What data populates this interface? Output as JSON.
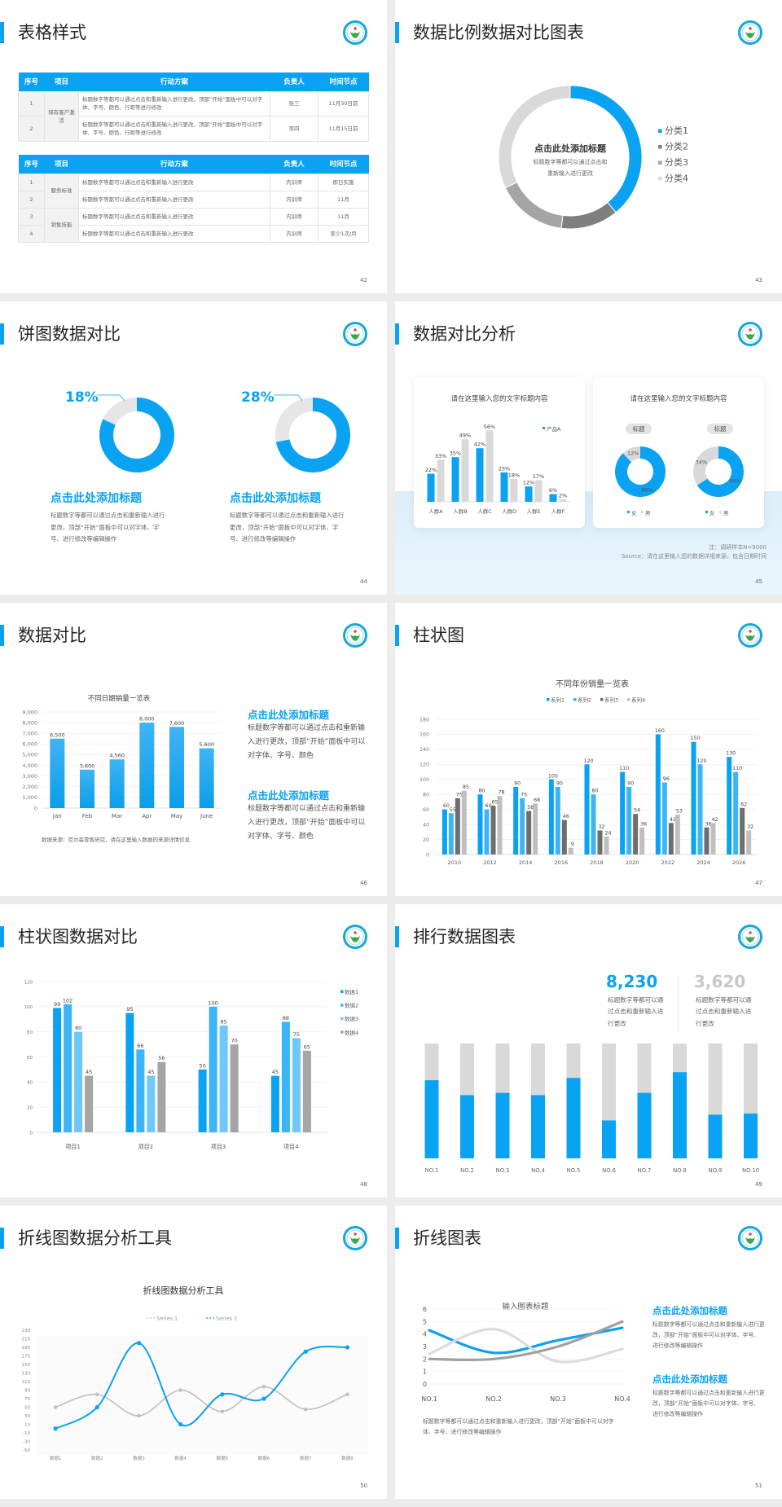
{
  "colors": {
    "accent": "#0aa2f2",
    "accent2": "#3bb5f6",
    "accent3": "#6ec8fa",
    "dark_gray": "#7f7f7f",
    "mid_gray": "#a5a5a5",
    "light_gray": "#d9d9d9",
    "logo_ring": "#19a6d9"
  },
  "slides": {
    "s42": {
      "title": "表格样式",
      "page": "42",
      "table1": {
        "headers": [
          "序号",
          "项目",
          "行动方案",
          "负责人",
          "时间节点"
        ],
        "groups": [
          {
            "name": "保有客户激活",
            "rows": [
              {
                "no": "1",
                "plan": "标题数字等都可以通过点击和重新输入进行更改，顶部“开始”面板中可以对字体、字号、颜色、行距等进行修改",
                "owner": "张三",
                "time": "11月30日前"
              },
              {
                "no": "2",
                "plan": "标题数字等都可以通过点击和重新输入进行更改，顶部“开始”面板中可以对字体、字号、颜色、行距等进行修改",
                "owner": "李四",
                "time": "11月15日前"
              }
            ]
          }
        ]
      },
      "table2": {
        "headers": [
          "序号",
          "项目",
          "行动方案",
          "负责人",
          "时间节点"
        ],
        "groups": [
          {
            "name": "服务标准",
            "rows": [
              {
                "no": "1",
                "plan": "标题数字等都可以通过点击和重新输入进行更改",
                "owner": "内训师",
                "time": "即日实施"
              },
              {
                "no": "2",
                "plan": "标题数字等都可以通过点击和重新输入进行更改",
                "owner": "内训师",
                "time": "11月"
              }
            ]
          },
          {
            "name": "销售技能",
            "rows": [
              {
                "no": "3",
                "plan": "标题数字等都可以通过点击和重新输入进行更改",
                "owner": "内训师",
                "time": "11月"
              },
              {
                "no": "4",
                "plan": "标题数字等都可以通过点击和重新输入进行更改",
                "owner": "内训师",
                "time": "至少1次/月"
              }
            ]
          }
        ]
      }
    },
    "s43": {
      "title": "数据比例数据对比图表",
      "page": "43",
      "center_title": "点击此处添加标题",
      "center_line1": "标题数字等都可以通过点击和",
      "center_line2": "重新输入进行更改"
    },
    "s44": {
      "title": "饼图数据对比",
      "page": "44",
      "items": [
        {
          "percent": "18%",
          "heading": "点击此处添加标题",
          "body": "标题数字等都可以通过点击和重新输入进行更改，顶部“开始”面板中可以对字体、字号、进行修改等编辑操作"
        },
        {
          "percent": "28%",
          "heading": "点击此处添加标题",
          "body": "标题数字等都可以通过点击和重新输入进行更改，顶部“开始”面板中可以对字体、字号、进行修改等编辑操作"
        }
      ]
    },
    "s45": {
      "title": "数据对比分析",
      "page": "45",
      "card1_title": "请在这里输入您的文字标题内容",
      "card2_title": "请在这里输入您的文字标题内容",
      "pill1": "标题",
      "pill2": "标题",
      "note": "注：调研样本N=9000",
      "source": "Source：请在这里输入您的数据详细来源，包含日期时间"
    },
    "s46": {
      "title": "数据对比",
      "page": "46",
      "source": "数据来源：尼尔森零售研究，请在这里输入数据的来源详情信息",
      "blocks": [
        {
          "heading": "点击此处添加标题",
          "body": "标题数字等都可以通过点击和重新输入进行更改，顶部“开始”面板中可以对字体、字号、颜色"
        },
        {
          "heading": "点击此处添加标题",
          "body": "标题数字等都可以通过点击和重新输入进行更改，顶部“开始”面板中可以对字体、字号、颜色"
        }
      ]
    },
    "s47": {
      "title": "柱状图",
      "page": "47"
    },
    "s48": {
      "title": "柱状图数据对比",
      "page": "48"
    },
    "s49": {
      "title": "排行数据图表",
      "page": "49",
      "stats": [
        {
          "value": "8,230",
          "body": "标题数字等都可以通过点击和重新输入进行更改"
        },
        {
          "value": "3,620",
          "body": "标题数字等都可以通过点击和重新输入进行更改"
        }
      ]
    },
    "s50": {
      "title": "折线图数据分析工具",
      "page": "50"
    },
    "s51": {
      "title": "折线图表",
      "page": "51",
      "caption": "标题数字等都可以通过点击和重新输入进行更改，顶部“开始”面板中可以对字体、字号、进行修改等编辑操作",
      "blocks": [
        {
          "heading": "点击此处添加标题",
          "body": "标题数字等都可以通过点击和重新输入进行更改，顶部“开始”面板中可以对字体、字号、进行修改等编辑操作"
        },
        {
          "heading": "点击此处添加标题",
          "body": "标题数字等都可以通过点击和重新输入进行更改，顶部“开始”面板中可以对字体、字号、进行修改等编辑操作"
        }
      ]
    }
  },
  "chart_data": [
    {
      "id": "s43-donut",
      "type": "pie",
      "donut": true,
      "categories": [
        "分类1",
        "分类2",
        "分类3",
        "分类4"
      ],
      "values": [
        39,
        13,
        16,
        32
      ],
      "legend": "right",
      "colors": [
        "#0aa2f2",
        "#7f7f7f",
        "#a5a5a5",
        "#d9d9d9"
      ]
    },
    {
      "id": "s44-donut-1",
      "type": "pie",
      "donut": true,
      "values": [
        82,
        18
      ],
      "colors": [
        "#0aa2f2",
        "#e6e6e6"
      ]
    },
    {
      "id": "s44-donut-2",
      "type": "pie",
      "donut": true,
      "values": [
        72,
        28
      ],
      "colors": [
        "#0aa2f2",
        "#e6e6e6"
      ]
    },
    {
      "id": "s45-bar",
      "type": "bar",
      "categories": [
        "人群A",
        "人群B",
        "人群C",
        "人群D",
        "人群E",
        "人群F"
      ],
      "series": [
        {
          "name": "产品A",
          "values": [
            22,
            35,
            42,
            23,
            12,
            6
          ],
          "color": "#0aa2f2"
        },
        {
          "values": [
            33,
            49,
            56,
            18,
            17,
            2
          ],
          "color": "#d9d9d9"
        }
      ],
      "value_suffix": "%",
      "legend": "top-right",
      "ylim": [
        0,
        60
      ]
    },
    {
      "id": "s45-donut-1",
      "type": "pie",
      "donut": true,
      "categories": [
        "女",
        "男"
      ],
      "values": [
        88,
        12
      ],
      "labels": [
        "88%",
        "12%"
      ],
      "colors": [
        "#0aa2f2",
        "#d9d9d9"
      ],
      "legend": "bottom"
    },
    {
      "id": "s45-donut-2",
      "type": "pie",
      "donut": true,
      "categories": [
        "女",
        "男"
      ],
      "values": [
        66,
        34
      ],
      "labels": [
        "66%",
        "34%"
      ],
      "colors": [
        "#0aa2f2",
        "#d9d9d9"
      ],
      "legend": "bottom"
    },
    {
      "id": "s46-bar",
      "type": "bar",
      "title": "不同日期销量一览表",
      "categories": [
        "Jan",
        "Feb",
        "Mar",
        "Apr",
        "May",
        "June"
      ],
      "series": [
        {
          "values": [
            6500,
            3600,
            4560,
            8000,
            7600,
            5600
          ],
          "color": "#0aa2f2"
        }
      ],
      "ylim": [
        0,
        9000
      ],
      "ytick_step": 1000,
      "grid": true
    },
    {
      "id": "s47-bar",
      "type": "bar",
      "title": "不同年份销量一览表",
      "categories": [
        "2010",
        "2012",
        "2014",
        "2016",
        "2018",
        "2020",
        "2022",
        "2024",
        "2026"
      ],
      "series": [
        {
          "name": "系列1",
          "values": [
            60,
            80,
            90,
            100,
            120,
            110,
            160,
            150,
            130
          ],
          "color": "#0aa2f2"
        },
        {
          "name": "系列2",
          "values": [
            55,
            60,
            75,
            90,
            80,
            90,
            96,
            120,
            110
          ],
          "color": "#3bb5f6"
        },
        {
          "name": "系列3",
          "values": [
            75,
            65,
            58,
            46,
            32,
            54,
            42,
            36,
            62
          ],
          "color": "#6e6e6e"
        },
        {
          "name": "系列4",
          "values": [
            85,
            78,
            68,
            9,
            24,
            36,
            53,
            42,
            32
          ],
          "color": "#bfbfbf"
        }
      ],
      "ylim": [
        0,
        180
      ],
      "ytick_step": 20,
      "grid": true,
      "legend": "top"
    },
    {
      "id": "s48-bar",
      "type": "bar",
      "categories": [
        "项目1",
        "项目2",
        "项目3",
        "项目4"
      ],
      "series": [
        {
          "name": "数据1",
          "values": [
            99,
            95,
            50,
            45
          ],
          "color": "#0aa2f2"
        },
        {
          "name": "数据2",
          "values": [
            102,
            66,
            100,
            88
          ],
          "color": "#3bb5f6"
        },
        {
          "name": "数据3",
          "values": [
            80,
            45,
            85,
            75
          ],
          "color": "#6ec8fa"
        },
        {
          "name": "数据4",
          "values": [
            45,
            56,
            70,
            65
          ],
          "color": "#a5a5a5"
        }
      ],
      "ylim": [
        0,
        120
      ],
      "ytick_step": 20,
      "grid": true,
      "legend": "right"
    },
    {
      "id": "s49-rank",
      "type": "bar",
      "stacked_percent": true,
      "categories": [
        "NO.1",
        "NO.2",
        "NO.3",
        "NO.4",
        "NO.5",
        "NO.6",
        "NO.7",
        "NO.8",
        "NO.9",
        "NO.10"
      ],
      "values": [
        68,
        55,
        57,
        55,
        70,
        33,
        57,
        75,
        38,
        39
      ],
      "ylim": [
        0,
        100
      ],
      "colors": [
        "#0aa2f2",
        "#d9d9d9"
      ]
    },
    {
      "id": "s50-line",
      "type": "line",
      "title": "折线图数据分析工具",
      "categories": [
        "数据1",
        "数据2",
        "数据3",
        "数据4",
        "数据5",
        "数据6",
        "数据7",
        "数据8"
      ],
      "series": [
        {
          "name": "Series 1",
          "values": [
            50,
            80,
            30,
            90,
            40,
            98,
            45,
            80
          ],
          "color": "#bfbfbf"
        },
        {
          "name": "Series 2",
          "values": [
            0,
            50,
            200,
            10,
            80,
            70,
            180,
            190
          ],
          "color": "#0aa2f2"
        }
      ],
      "ylim": [
        -50,
        230
      ],
      "ytick_step": 20,
      "smooth": true,
      "markers": true,
      "legend": "top"
    },
    {
      "id": "s51-line",
      "type": "line",
      "title": "输入图表标题",
      "categories": [
        "NO.1",
        "NO.2",
        "NO.3",
        "NO.4"
      ],
      "series": [
        {
          "values": [
            4.3,
            2.5,
            3.5,
            4.5
          ],
          "color": "#0aa2f2"
        },
        {
          "values": [
            2.4,
            4.4,
            1.8,
            2.8
          ],
          "color": "#dcdcdc"
        },
        {
          "values": [
            2,
            2,
            3,
            5
          ],
          "color": "#a0a0a0"
        }
      ],
      "ylim": [
        0,
        6
      ],
      "ytick_step": 1,
      "smooth": true,
      "grid": true
    }
  ]
}
